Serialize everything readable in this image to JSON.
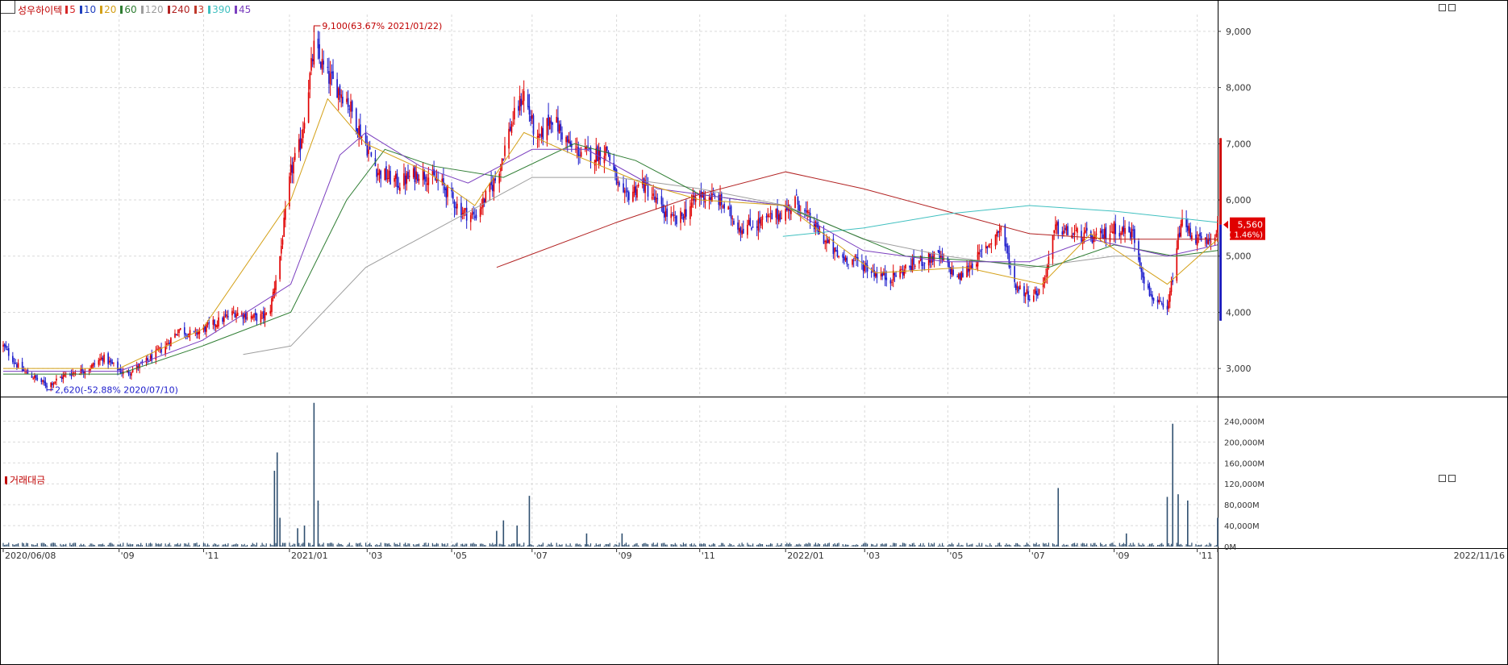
{
  "legend": {
    "stock_name": "성우하이텍",
    "items": [
      {
        "label": "5",
        "color": "#d62728"
      },
      {
        "label": "10",
        "color": "#1f3fbf"
      },
      {
        "label": "20",
        "color": "#d4a017"
      },
      {
        "label": "60",
        "color": "#2e7d32"
      },
      {
        "label": "120",
        "color": "#9e9e9e"
      },
      {
        "label": "240",
        "color": "#b22222"
      },
      {
        "label": "3",
        "color": "#c0392b"
      },
      {
        "label": "390",
        "color": "#40c0c0"
      },
      {
        "label": "45",
        "color": "#7b3fbf"
      }
    ]
  },
  "volume_legend": {
    "label": "거래대금",
    "color": "#c00000"
  },
  "colors": {
    "up": "#e00000",
    "down": "#1c1ccc",
    "grid": "#d9d9d9",
    "axis": "#333333",
    "volume": "#2f4f6f"
  },
  "chart_data": [
    {
      "type": "candlestick",
      "ylim": [
        2500,
        9300
      ],
      "yticks": [
        "9,000",
        "8,000",
        "7,000",
        "6,000",
        "5,000",
        "4,000",
        "3,000"
      ],
      "ytick_values": [
        9000,
        8000,
        7000,
        6000,
        5000,
        4000,
        3000
      ],
      "x_start": "2020/06/08",
      "x_end": "2022/11/16",
      "xticks": [
        "2020/06/08",
        "'09",
        "'11",
        "2021/01",
        "'03",
        "'05",
        "'07",
        "'09",
        "'11",
        "2022/01",
        "'03",
        "'05",
        "'07",
        "'09",
        "'11",
        "2022/11/16"
      ],
      "xtick_dates": [
        "2020-06-08",
        "2020-09-01",
        "2020-11-02",
        "2021-01-04",
        "2021-03-02",
        "2021-05-03",
        "2021-07-01",
        "2021-09-01",
        "2021-11-01",
        "2022-01-03",
        "2022-03-02",
        "2022-05-02",
        "2022-07-01",
        "2022-09-01",
        "2022-11-01",
        "2022-11-16"
      ],
      "close_path": [
        [
          "2020-06-08",
          3400
        ],
        [
          "2020-06-20",
          3000
        ],
        [
          "2020-07-10",
          2700
        ],
        [
          "2020-07-25",
          2900
        ],
        [
          "2020-08-10",
          3000
        ],
        [
          "2020-08-20",
          3200
        ],
        [
          "2020-09-05",
          2900
        ],
        [
          "2020-09-20",
          3100
        ],
        [
          "2020-10-05",
          3400
        ],
        [
          "2020-10-15",
          3700
        ],
        [
          "2020-10-25",
          3600
        ],
        [
          "2020-11-10",
          3800
        ],
        [
          "2020-11-25",
          4000
        ],
        [
          "2020-12-10",
          3900
        ],
        [
          "2020-12-20",
          3950
        ],
        [
          "2020-12-28",
          5000
        ],
        [
          "2021-01-05",
          6500
        ],
        [
          "2021-01-12",
          7000
        ],
        [
          "2021-01-22",
          8700
        ],
        [
          "2021-02-01",
          8200
        ],
        [
          "2021-02-15",
          7800
        ],
        [
          "2021-02-25",
          7200
        ],
        [
          "2021-03-10",
          6500
        ],
        [
          "2021-03-25",
          6300
        ],
        [
          "2021-04-10",
          6500
        ],
        [
          "2021-04-25",
          6300
        ],
        [
          "2021-05-10",
          5800
        ],
        [
          "2021-05-20",
          5700
        ],
        [
          "2021-06-05",
          6400
        ],
        [
          "2021-06-15",
          7300
        ],
        [
          "2021-06-25",
          7900
        ],
        [
          "2021-07-05",
          7000
        ],
        [
          "2021-07-15",
          7500
        ],
        [
          "2021-07-30",
          6900
        ],
        [
          "2021-08-15",
          6800
        ],
        [
          "2021-08-25",
          6900
        ],
        [
          "2021-09-05",
          6000
        ],
        [
          "2021-09-20",
          6300
        ],
        [
          "2021-10-05",
          5800
        ],
        [
          "2021-10-15",
          5600
        ],
        [
          "2021-11-01",
          6100
        ],
        [
          "2021-11-15",
          6000
        ],
        [
          "2021-12-01",
          5500
        ],
        [
          "2021-12-15",
          5600
        ],
        [
          "2022-01-03",
          5800
        ],
        [
          "2022-01-10",
          6000
        ],
        [
          "2022-01-25",
          5500
        ],
        [
          "2022-02-10",
          5000
        ],
        [
          "2022-02-25",
          4900
        ],
        [
          "2022-03-10",
          4700
        ],
        [
          "2022-03-20",
          4600
        ],
        [
          "2022-04-10",
          4900
        ],
        [
          "2022-04-25",
          5000
        ],
        [
          "2022-05-10",
          4600
        ],
        [
          "2022-05-25",
          5000
        ],
        [
          "2022-06-10",
          5500
        ],
        [
          "2022-06-20",
          4500
        ],
        [
          "2022-07-01",
          4300
        ],
        [
          "2022-07-10",
          4400
        ],
        [
          "2022-07-20",
          5500
        ],
        [
          "2022-08-01",
          5400
        ],
        [
          "2022-08-20",
          5300
        ],
        [
          "2022-09-01",
          5500
        ],
        [
          "2022-09-15",
          5400
        ],
        [
          "2022-09-25",
          4400
        ],
        [
          "2022-10-05",
          4100
        ],
        [
          "2022-10-10",
          4000
        ],
        [
          "2022-10-20",
          5600
        ],
        [
          "2022-11-01",
          5300
        ],
        [
          "2022-11-10",
          5200
        ],
        [
          "2022-11-16",
          5560
        ]
      ],
      "ma_series": [
        {
          "legend_index": 4,
          "points": [
            [
              "2020-12-01",
              3250
            ],
            [
              "2021-01-05",
              3400
            ],
            [
              "2021-03-01",
              4800
            ],
            [
              "2021-05-01",
              5600
            ],
            [
              "2021-07-01",
              6400
            ],
            [
              "2021-09-01",
              6400
            ],
            [
              "2021-11-01",
              6200
            ],
            [
              "2022-01-03",
              5900
            ],
            [
              "2022-03-01",
              5300
            ],
            [
              "2022-05-01",
              5000
            ],
            [
              "2022-07-01",
              4800
            ],
            [
              "2022-09-01",
              5000
            ],
            [
              "2022-11-16",
              5000
            ]
          ]
        },
        {
          "legend_index": 5,
          "points": [
            [
              "2021-06-05",
              4800
            ],
            [
              "2021-09-01",
              5600
            ],
            [
              "2021-11-01",
              6100
            ],
            [
              "2022-01-03",
              6500
            ],
            [
              "2022-03-01",
              6200
            ],
            [
              "2022-05-01",
              5800
            ],
            [
              "2022-07-01",
              5400
            ],
            [
              "2022-09-01",
              5300
            ],
            [
              "2022-11-16",
              5300
            ]
          ]
        },
        {
          "legend_index": 7,
          "points": [
            [
              "2022-01-01",
              5350
            ],
            [
              "2022-03-01",
              5500
            ],
            [
              "2022-05-01",
              5750
            ],
            [
              "2022-07-01",
              5900
            ],
            [
              "2022-09-01",
              5800
            ],
            [
              "2022-11-16",
              5600
            ]
          ]
        },
        {
          "legend_index": 3,
          "points": [
            [
              "2020-06-08",
              2900
            ],
            [
              "2020-09-01",
              2900
            ],
            [
              "2020-11-01",
              3400
            ],
            [
              "2021-01-05",
              4000
            ],
            [
              "2021-02-15",
              6000
            ],
            [
              "2021-03-15",
              6900
            ],
            [
              "2021-04-20",
              6600
            ],
            [
              "2021-06-10",
              6400
            ],
            [
              "2021-08-01",
              7000
            ],
            [
              "2021-09-15",
              6700
            ],
            [
              "2021-11-01",
              6100
            ],
            [
              "2022-01-01",
              5900
            ],
            [
              "2022-02-20",
              5400
            ],
            [
              "2022-04-01",
              5000
            ],
            [
              "2022-06-01",
              4900
            ],
            [
              "2022-07-15",
              4800
            ],
            [
              "2022-09-01",
              5200
            ],
            [
              "2022-10-15",
              5000
            ],
            [
              "2022-11-16",
              5100
            ]
          ]
        },
        {
          "legend_index": 8,
          "points": [
            [
              "2020-06-08",
              2950
            ],
            [
              "2020-09-01",
              2950
            ],
            [
              "2020-11-01",
              3500
            ],
            [
              "2021-01-05",
              4500
            ],
            [
              "2021-02-10",
              6800
            ],
            [
              "2021-03-01",
              7200
            ],
            [
              "2021-04-10",
              6600
            ],
            [
              "2021-05-15",
              6300
            ],
            [
              "2021-07-01",
              6900
            ],
            [
              "2021-08-10",
              6900
            ],
            [
              "2021-10-01",
              6200
            ],
            [
              "2022-01-01",
              5900
            ],
            [
              "2022-03-01",
              5100
            ],
            [
              "2022-05-01",
              4900
            ],
            [
              "2022-07-01",
              4900
            ],
            [
              "2022-08-15",
              5300
            ],
            [
              "2022-10-10",
              5000
            ],
            [
              "2022-11-16",
              5200
            ]
          ]
        },
        {
          "legend_index": 2,
          "points": [
            [
              "2020-06-08",
              3000
            ],
            [
              "2020-09-01",
              3000
            ],
            [
              "2020-11-01",
              3700
            ],
            [
              "2021-01-05",
              6000
            ],
            [
              "2021-02-01",
              7800
            ],
            [
              "2021-03-01",
              7000
            ],
            [
              "2021-04-15",
              6500
            ],
            [
              "2021-05-20",
              5900
            ],
            [
              "2021-06-25",
              7200
            ],
            [
              "2021-08-01",
              6800
            ],
            [
              "2021-09-20",
              6300
            ],
            [
              "2021-11-01",
              6000
            ],
            [
              "2022-01-03",
              5900
            ],
            [
              "2022-03-10",
              4700
            ],
            [
              "2022-05-15",
              4800
            ],
            [
              "2022-07-10",
              4500
            ],
            [
              "2022-08-15",
              5400
            ],
            [
              "2022-10-10",
              4500
            ],
            [
              "2022-11-16",
              5300
            ]
          ]
        }
      ],
      "annotations": [
        {
          "text": "9,100(63.67% 2021/01/22)",
          "date": "2021-01-22",
          "value": 9100,
          "kind": "high"
        },
        {
          "text": "2,620(-52.88% 2020/07/10)",
          "date": "2020-07-10",
          "value": 2620,
          "kind": "low"
        }
      ],
      "current": {
        "price_label": "5,560",
        "change_label": "( 1.46%)",
        "value": 5560
      },
      "range_bar": {
        "high": 7100,
        "mid": 5560,
        "low": 3850
      }
    },
    {
      "type": "bar",
      "title": "거래대금",
      "ylim": [
        0,
        270000
      ],
      "yticks": [
        "240,000M",
        "200,000M",
        "160,000M",
        "120,000M",
        "80,000M",
        "40,000M",
        "0M"
      ],
      "ytick_values": [
        240000,
        200000,
        160000,
        120000,
        80000,
        40000,
        0
      ],
      "spikes": [
        [
          "2020-12-24",
          145000
        ],
        [
          "2020-12-26",
          180000
        ],
        [
          "2020-12-28",
          55000
        ],
        [
          "2021-01-22",
          275000
        ],
        [
          "2021-01-25",
          88000
        ],
        [
          "2021-01-15",
          40000
        ],
        [
          "2021-01-10",
          35000
        ],
        [
          "2021-06-10",
          50000
        ],
        [
          "2021-06-20",
          40000
        ],
        [
          "2021-06-29",
          97000
        ],
        [
          "2021-08-10",
          25000
        ],
        [
          "2021-09-05",
          25000
        ],
        [
          "2021-06-05",
          30000
        ],
        [
          "2022-07-22",
          112000
        ],
        [
          "2022-09-10",
          25000
        ],
        [
          "2022-10-10",
          95000
        ],
        [
          "2022-10-14",
          235000
        ],
        [
          "2022-10-18",
          100000
        ],
        [
          "2022-10-25",
          88000
        ],
        [
          "2022-11-16",
          55000
        ]
      ]
    }
  ]
}
